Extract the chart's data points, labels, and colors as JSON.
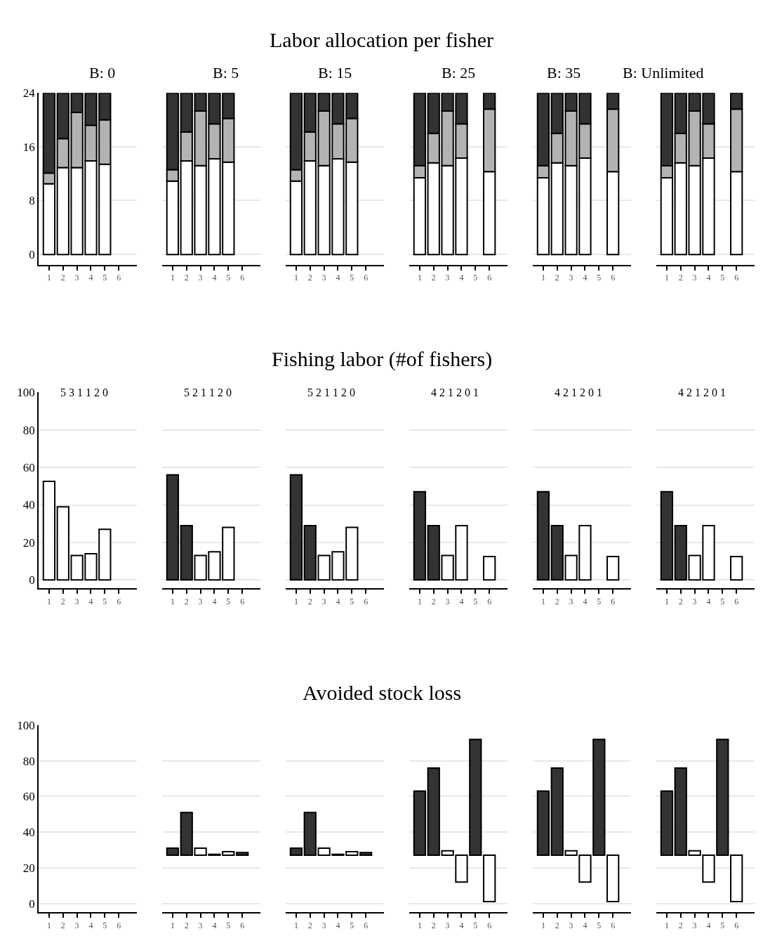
{
  "chart_data": [
    {
      "type": "bar",
      "title": "B: 0",
      "annotations": [
        "Labor allocation per fisher"
      ],
      "categories": [
        "1",
        "2",
        "3",
        "4",
        "5",
        "6"
      ],
      "stacked": true,
      "ylim": [
        -1.5,
        24
      ],
      "yticks": [
        0,
        8,
        16,
        24
      ],
      "grid": "y",
      "series": [
        {
          "color": "#ffffff",
          "values": [
            10.5,
            12.9,
            12.9,
            13.9,
            13.4,
            null
          ]
        },
        {
          "color": "#b3b3b3",
          "values": [
            1.6,
            4.3,
            8.2,
            5.3,
            6.6,
            null
          ]
        },
        {
          "color": "#333333",
          "values": [
            11.9,
            6.8,
            2.9,
            4.8,
            4.0,
            null
          ]
        }
      ]
    },
    {
      "type": "bar",
      "title": "B: 5",
      "categories": [
        "1",
        "2",
        "3",
        "4",
        "5",
        "6"
      ],
      "stacked": true,
      "ylim": [
        -1.5,
        24
      ],
      "yticks": [
        0,
        8,
        16,
        24
      ],
      "grid": "y",
      "tick_labels": "x",
      "series": [
        {
          "color": "#ffffff",
          "values": [
            10.9,
            13.9,
            13.2,
            14.2,
            13.7,
            null
          ]
        },
        {
          "color": "#b3b3b3",
          "values": [
            1.7,
            4.3,
            8.1,
            5.2,
            6.5,
            null
          ]
        },
        {
          "color": "#333333",
          "values": [
            11.4,
            5.8,
            2.7,
            4.6,
            3.8,
            null
          ]
        }
      ]
    },
    {
      "type": "bar",
      "title": "B: 15",
      "categories": [
        "1",
        "2",
        "3",
        "4",
        "5",
        "6"
      ],
      "stacked": true,
      "ylim": [
        -1.5,
        24
      ],
      "yticks": [
        0,
        8,
        16,
        24
      ],
      "grid": "y",
      "tick_labels": "x",
      "series": [
        {
          "color": "#ffffff",
          "values": [
            10.9,
            13.9,
            13.2,
            14.2,
            13.7,
            null
          ]
        },
        {
          "color": "#b3b3b3",
          "values": [
            1.7,
            4.3,
            8.1,
            5.2,
            6.5,
            null
          ]
        },
        {
          "color": "#333333",
          "values": [
            11.4,
            5.8,
            2.7,
            4.6,
            3.8,
            null
          ]
        }
      ]
    },
    {
      "type": "bar",
      "title": "B: 25",
      "categories": [
        "1",
        "2",
        "3",
        "4",
        "5",
        "6"
      ],
      "stacked": true,
      "ylim": [
        -1.5,
        24
      ],
      "yticks": [
        0,
        8,
        16,
        24
      ],
      "grid": "y",
      "tick_labels": "x",
      "series": [
        {
          "color": "#ffffff",
          "values": [
            11.4,
            13.6,
            13.2,
            14.3,
            null,
            12.3
          ]
        },
        {
          "color": "#b3b3b3",
          "values": [
            1.8,
            4.4,
            8.1,
            5.1,
            null,
            9.3
          ]
        },
        {
          "color": "#333333",
          "values": [
            10.8,
            6.0,
            2.7,
            4.6,
            null,
            2.4
          ]
        }
      ]
    },
    {
      "type": "bar",
      "title": "B: 35",
      "categories": [
        "1",
        "2",
        "3",
        "4",
        "5",
        "6"
      ],
      "stacked": true,
      "ylim": [
        -1.5,
        24
      ],
      "yticks": [
        0,
        8,
        16,
        24
      ],
      "grid": "y",
      "tick_labels": "x",
      "series": [
        {
          "color": "#ffffff",
          "values": [
            11.4,
            13.6,
            13.2,
            14.3,
            null,
            12.3
          ]
        },
        {
          "color": "#b3b3b3",
          "values": [
            1.8,
            4.4,
            8.1,
            5.1,
            null,
            9.3
          ]
        },
        {
          "color": "#333333",
          "values": [
            10.8,
            6.0,
            2.7,
            4.6,
            null,
            2.4
          ]
        }
      ]
    },
    {
      "type": "bar",
      "title": "B: Unlimited",
      "categories": [
        "1",
        "2",
        "3",
        "4",
        "5",
        "6"
      ],
      "stacked": true,
      "ylim": [
        -1.5,
        24
      ],
      "yticks": [
        0,
        8,
        16,
        24
      ],
      "grid": "y",
      "tick_labels": "x",
      "series": [
        {
          "color": "#ffffff",
          "values": [
            11.4,
            13.6,
            13.2,
            14.3,
            null,
            12.3
          ]
        },
        {
          "color": "#b3b3b3",
          "values": [
            1.8,
            4.4,
            8.1,
            5.1,
            null,
            9.3
          ]
        },
        {
          "color": "#333333",
          "values": [
            10.8,
            6.0,
            2.7,
            4.6,
            null,
            2.4
          ]
        }
      ]
    },
    {
      "type": "bar",
      "annotations": [
        "Fishing labor (#of fishers)"
      ],
      "categories": [
        "1",
        "2",
        "3",
        "4",
        "5",
        "6"
      ],
      "values": [
        52.5,
        39,
        13,
        14,
        27,
        null
      ],
      "colors": [
        "#ffffff",
        "#ffffff",
        "#ffffff",
        "#ffffff",
        "#ffffff",
        "#ffffff"
      ],
      "subtitle": "5 3 1 1 2 0",
      "ylim": [
        -4.5,
        100
      ],
      "yticks": [
        0,
        20,
        40,
        60,
        80,
        100
      ],
      "grid": "y"
    },
    {
      "type": "bar",
      "categories": [
        "1",
        "2",
        "3",
        "4",
        "5",
        "6"
      ],
      "values": [
        56,
        29,
        13,
        15,
        28,
        null
      ],
      "colors": [
        "#333333",
        "#333333",
        "#ffffff",
        "#ffffff",
        "#ffffff",
        "#ffffff"
      ],
      "subtitle": "5 2 1 1 2 0",
      "ylim": [
        -4.5,
        100
      ],
      "yticks": [
        0,
        20,
        40,
        60,
        80,
        100
      ],
      "grid": "y",
      "tick_labels": "x"
    },
    {
      "type": "bar",
      "categories": [
        "1",
        "2",
        "3",
        "4",
        "5",
        "6"
      ],
      "values": [
        56,
        29,
        13,
        15,
        28,
        null
      ],
      "colors": [
        "#333333",
        "#333333",
        "#ffffff",
        "#ffffff",
        "#ffffff",
        "#ffffff"
      ],
      "subtitle": "5 2 1 1 2 0",
      "ylim": [
        -4.5,
        100
      ],
      "yticks": [
        0,
        20,
        40,
        60,
        80,
        100
      ],
      "grid": "y",
      "tick_labels": "x"
    },
    {
      "type": "bar",
      "categories": [
        "1",
        "2",
        "3",
        "4",
        "5",
        "6"
      ],
      "values": [
        47,
        29,
        13,
        29,
        null,
        12.5
      ],
      "colors": [
        "#333333",
        "#333333",
        "#ffffff",
        "#ffffff",
        "#ffffff",
        "#ffffff"
      ],
      "subtitle": "4 2 1 2 0 1",
      "ylim": [
        -4.5,
        100
      ],
      "yticks": [
        0,
        20,
        40,
        60,
        80,
        100
      ],
      "grid": "y",
      "tick_labels": "x"
    },
    {
      "type": "bar",
      "categories": [
        "1",
        "2",
        "3",
        "4",
        "5",
        "6"
      ],
      "values": [
        47,
        29,
        13,
        29,
        null,
        12.5
      ],
      "colors": [
        "#333333",
        "#333333",
        "#ffffff",
        "#ffffff",
        "#ffffff",
        "#ffffff"
      ],
      "subtitle": "4 2 1 2 0 1",
      "ylim": [
        -4.5,
        100
      ],
      "yticks": [
        0,
        20,
        40,
        60,
        80,
        100
      ],
      "grid": "y",
      "tick_labels": "x"
    },
    {
      "type": "bar",
      "categories": [
        "1",
        "2",
        "3",
        "4",
        "5",
        "6"
      ],
      "values": [
        47,
        29,
        13,
        29,
        null,
        12.5
      ],
      "colors": [
        "#333333",
        "#333333",
        "#ffffff",
        "#ffffff",
        "#ffffff",
        "#ffffff"
      ],
      "subtitle": "4 2 1 2 0 1",
      "ylim": [
        -4.5,
        100
      ],
      "yticks": [
        0,
        20,
        40,
        60,
        80,
        100
      ],
      "grid": "y",
      "tick_labels": "x"
    },
    {
      "type": "bar",
      "annotations": [
        "Avoided stock loss"
      ],
      "categories": [
        "1",
        "2",
        "3",
        "4",
        "5",
        "6"
      ],
      "values": [
        null,
        null,
        null,
        null,
        null,
        null
      ],
      "ylim": [
        -5,
        100
      ],
      "yticks": [
        0,
        20,
        40,
        60,
        80,
        100
      ],
      "grid": "y"
    },
    {
      "type": "bar",
      "categories": [
        "1",
        "2",
        "3",
        "4",
        "5",
        "6"
      ],
      "base": [
        27,
        27,
        27,
        27,
        27,
        27
      ],
      "values": [
        4,
        24,
        4,
        0.5,
        2,
        1.5
      ],
      "colors": [
        "#333333",
        "#333333",
        "#ffffff",
        "#ffffff",
        "#ffffff",
        "#333333"
      ],
      "ylim": [
        -5,
        100
      ],
      "yticks": [
        0,
        20,
        40,
        60,
        80,
        100
      ],
      "grid": "y",
      "tick_labels": "x"
    },
    {
      "type": "bar",
      "categories": [
        "1",
        "2",
        "3",
        "4",
        "5",
        "6"
      ],
      "base": [
        27,
        27,
        27,
        27,
        27,
        27
      ],
      "values": [
        4,
        24,
        4,
        0.5,
        2,
        1.5
      ],
      "colors": [
        "#333333",
        "#333333",
        "#ffffff",
        "#ffffff",
        "#ffffff",
        "#333333"
      ],
      "ylim": [
        -5,
        100
      ],
      "yticks": [
        0,
        20,
        40,
        60,
        80,
        100
      ],
      "grid": "y",
      "tick_labels": "x"
    },
    {
      "type": "bar",
      "categories": [
        "1",
        "2",
        "3",
        "4",
        "5",
        "6"
      ],
      "base": [
        27,
        27,
        27,
        27,
        27,
        27
      ],
      "values": [
        36,
        49,
        2.5,
        -15,
        65,
        -26
      ],
      "colors": [
        "#333333",
        "#333333",
        "#ffffff",
        "#ffffff",
        "#333333",
        "#ffffff"
      ],
      "ylim": [
        -5,
        100
      ],
      "yticks": [
        0,
        20,
        40,
        60,
        80,
        100
      ],
      "grid": "y",
      "tick_labels": "x"
    },
    {
      "type": "bar",
      "categories": [
        "1",
        "2",
        "3",
        "4",
        "5",
        "6"
      ],
      "base": [
        27,
        27,
        27,
        27,
        27,
        27
      ],
      "values": [
        36,
        49,
        2.5,
        -15,
        65,
        -26
      ],
      "colors": [
        "#333333",
        "#333333",
        "#ffffff",
        "#ffffff",
        "#333333",
        "#ffffff"
      ],
      "ylim": [
        -5,
        100
      ],
      "yticks": [
        0,
        20,
        40,
        60,
        80,
        100
      ],
      "grid": "y",
      "tick_labels": "x"
    },
    {
      "type": "bar",
      "categories": [
        "1",
        "2",
        "3",
        "4",
        "5",
        "6"
      ],
      "base": [
        27,
        27,
        27,
        27,
        27,
        27
      ],
      "values": [
        36,
        49,
        2.5,
        -15,
        65,
        -26
      ],
      "colors": [
        "#333333",
        "#333333",
        "#ffffff",
        "#ffffff",
        "#333333",
        "#ffffff"
      ],
      "ylim": [
        -5,
        100
      ],
      "yticks": [
        0,
        20,
        40,
        60,
        80,
        100
      ],
      "grid": "y",
      "tick_labels": "x"
    }
  ]
}
